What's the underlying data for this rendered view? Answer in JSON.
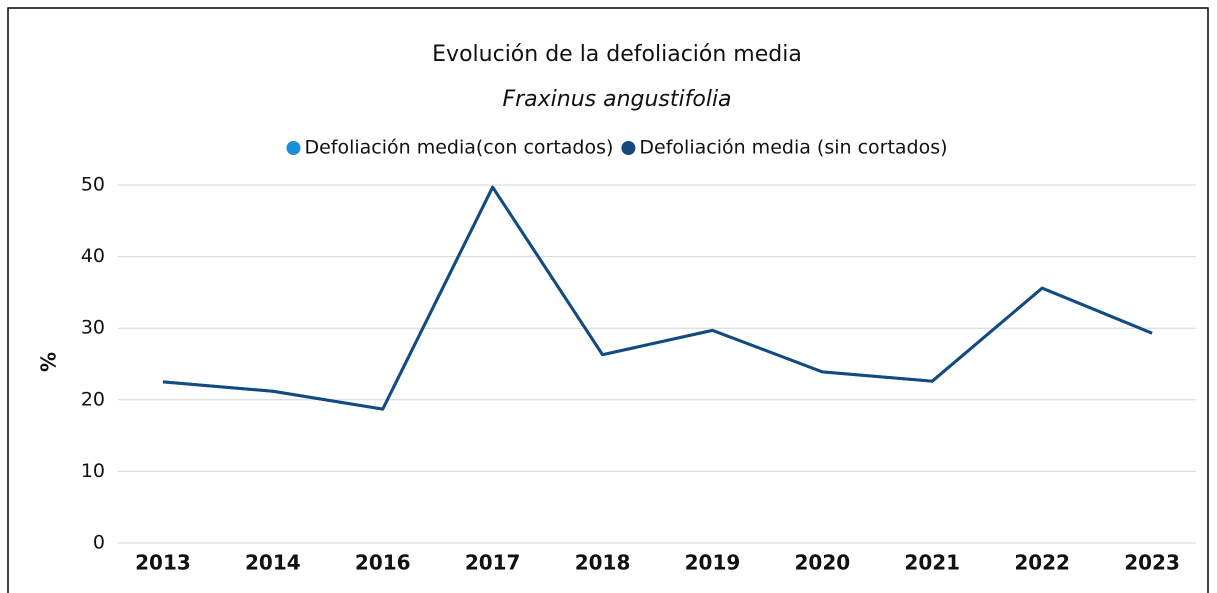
{
  "chart_data": {
    "type": "line",
    "title": "Evolución de la defoliación media",
    "subtitle": "Fraxinus angustifolia",
    "y_label": "%",
    "categories": [
      "2013",
      "2014",
      "2016",
      "2017",
      "2018",
      "2019",
      "2020",
      "2021",
      "2022",
      "2023"
    ],
    "series": [
      {
        "name": "Defoliación media(con cortados)",
        "color": "#1a8fd8",
        "values": [
          22.5,
          21.2,
          18.7,
          49.7,
          26.3,
          29.7,
          23.9,
          22.6,
          35.6,
          29.3
        ]
      },
      {
        "name": "Defoliación media (sin cortados)",
        "color": "#154a80",
        "values": [
          22.5,
          21.2,
          18.7,
          49.7,
          26.3,
          29.7,
          23.9,
          22.6,
          35.6,
          29.3
        ]
      }
    ],
    "ylim": [
      0,
      50
    ],
    "yticks": [
      0,
      10,
      20,
      30,
      40,
      50
    ],
    "grid": true
  }
}
